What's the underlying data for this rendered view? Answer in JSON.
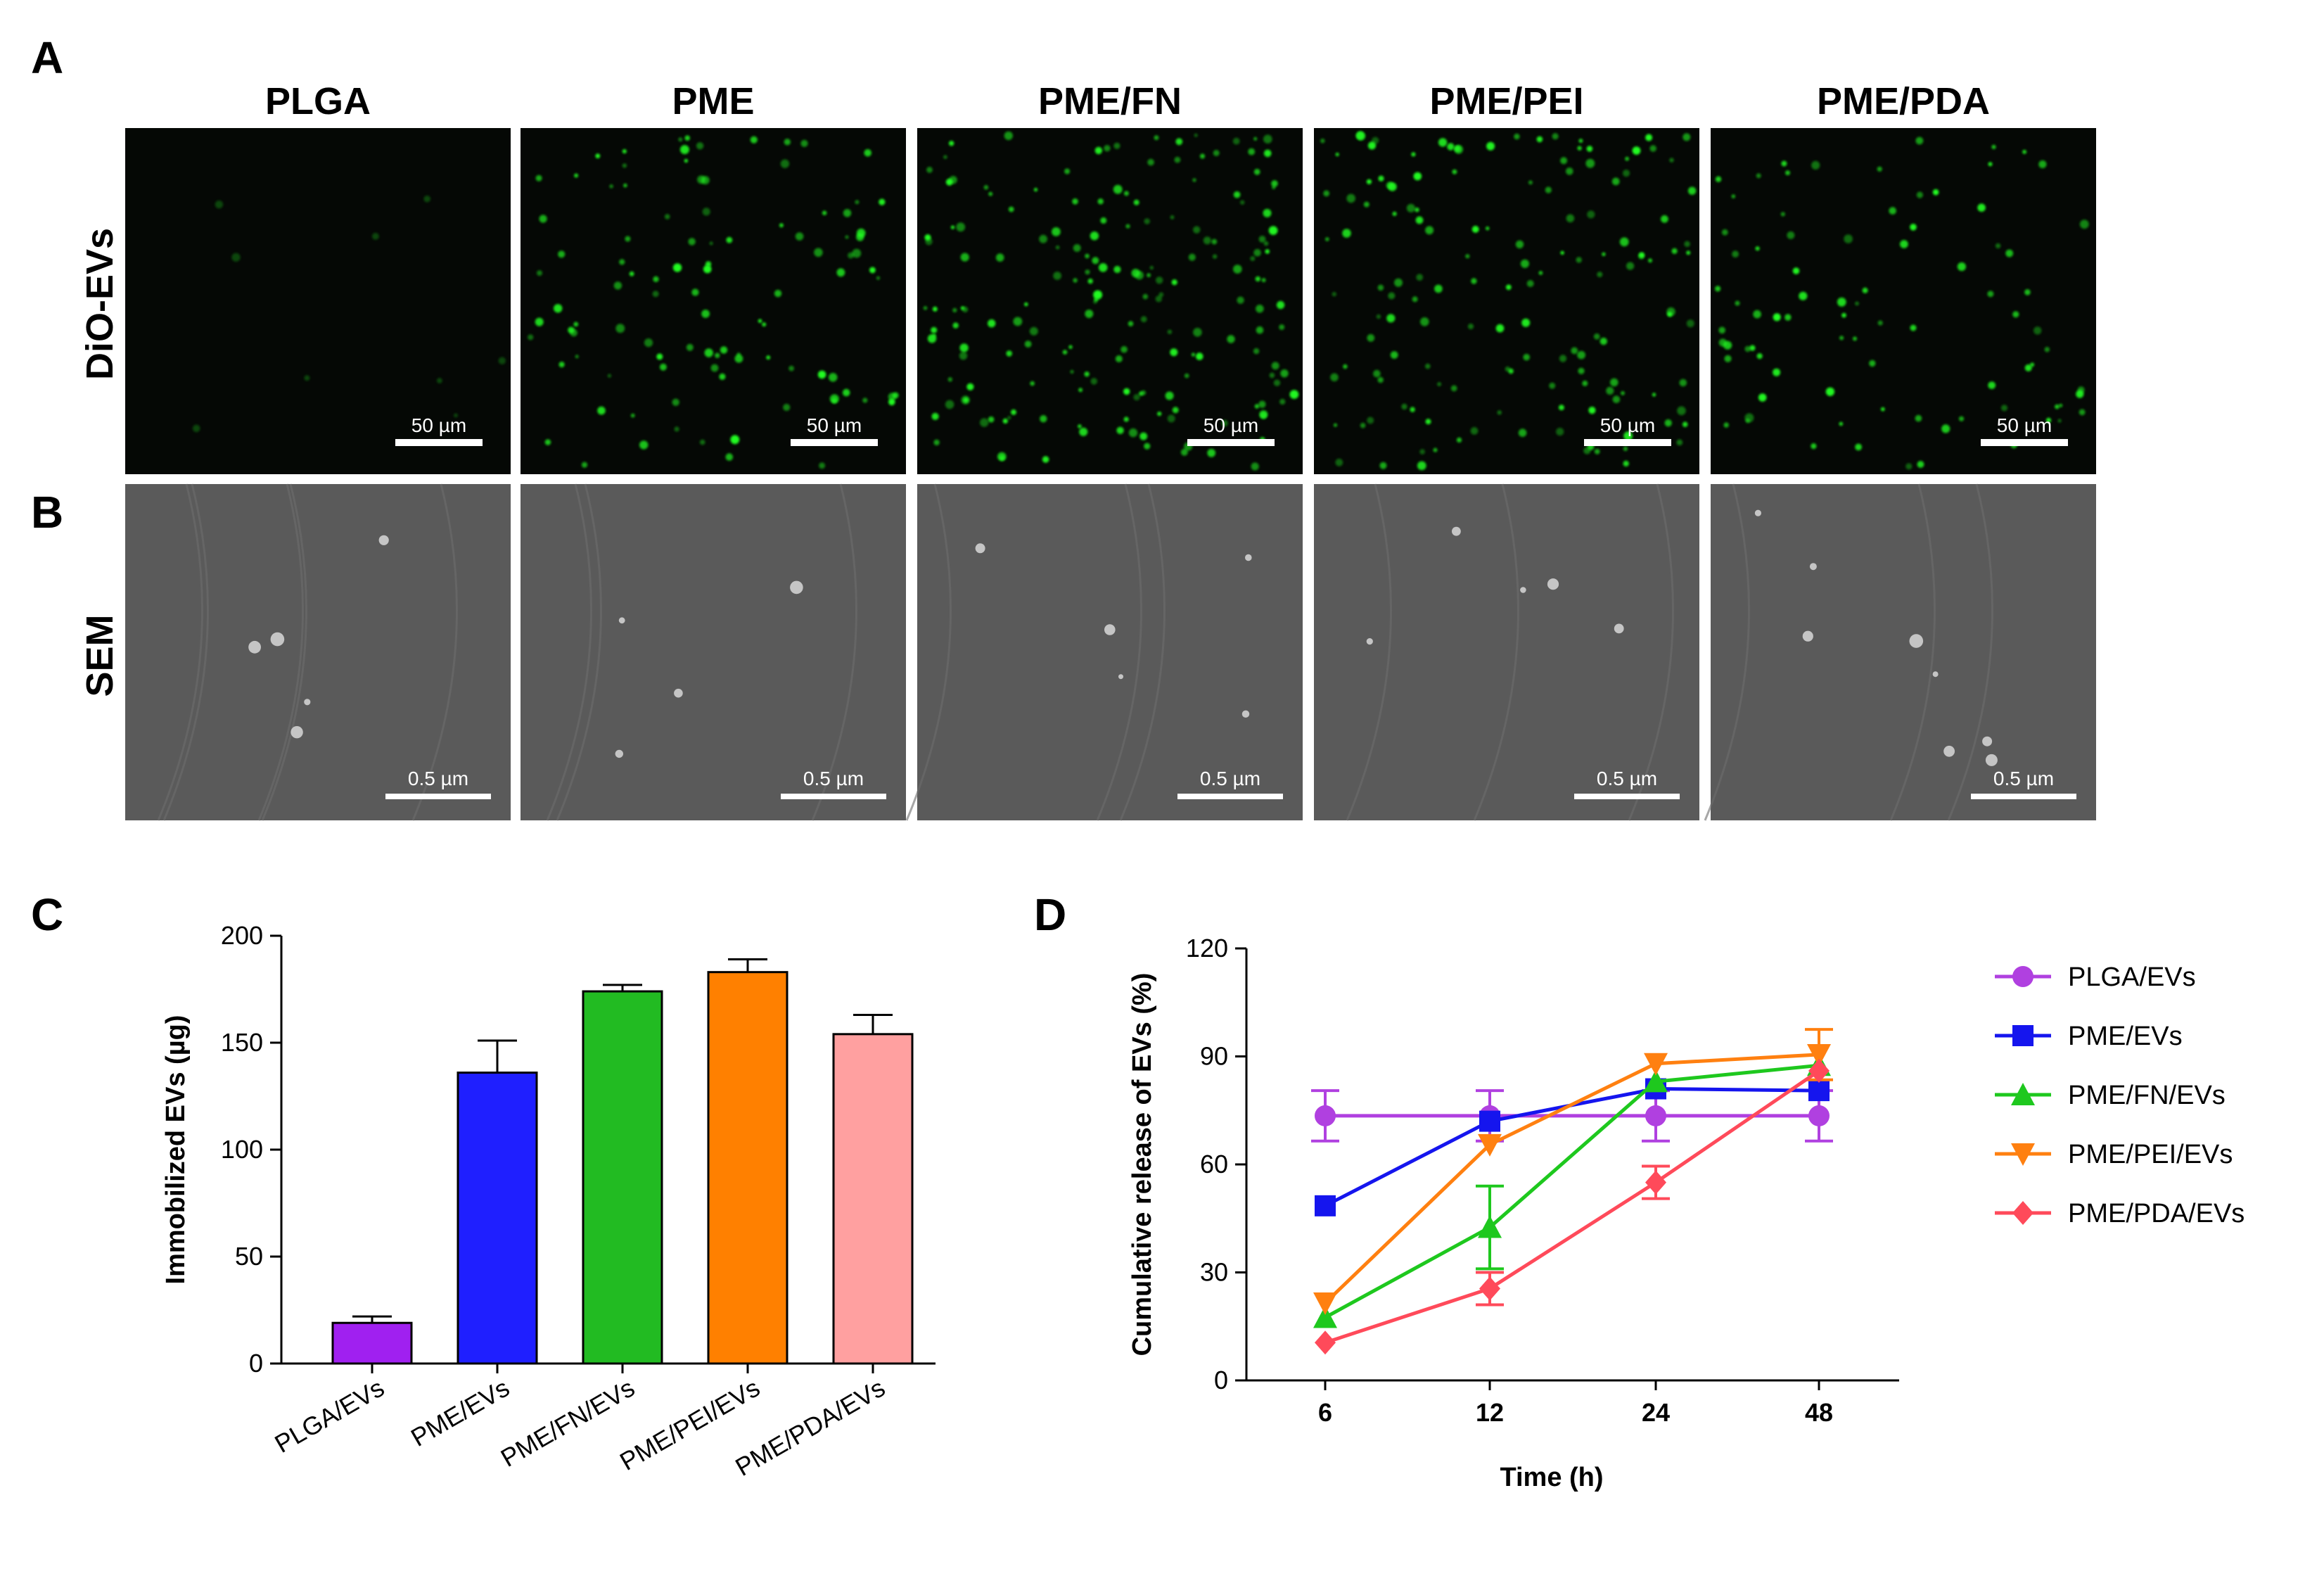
{
  "panels": {
    "a": {
      "letter": "A",
      "row_label": "DiO-EVs"
    },
    "b": {
      "letter": "B",
      "row_label": "SEM"
    },
    "c": {
      "letter": "C"
    },
    "d": {
      "letter": "D"
    }
  },
  "columns": [
    {
      "title": "PLGA",
      "fluor_scale": "50 µm",
      "sem_scale": "0.5 µm",
      "fluor_density": 0.02
    },
    {
      "title": "PME",
      "fluor_scale": "50 µm",
      "sem_scale": "0.5 µm",
      "fluor_density": 0.55
    },
    {
      "title": "PME/FN",
      "fluor_scale": "50 µm",
      "sem_scale": "0.5 µm",
      "fluor_density": 1.0
    },
    {
      "title": "PME/PEI",
      "fluor_scale": "50 µm",
      "sem_scale": "0.5 µm",
      "fluor_density": 0.8
    },
    {
      "title": "PME/PDA",
      "fluor_scale": "50 µm",
      "sem_scale": "0.5 µm",
      "fluor_density": 0.45
    }
  ],
  "colors": {
    "fluor_bg": "#050805",
    "fluor_dot": "#22ff22",
    "sem_bg": "#5a5a5a",
    "sem_particle": "#d8d8d8"
  },
  "chart_data": [
    {
      "type": "bar",
      "panel": "C",
      "categories": [
        "PLGA/EVs",
        "PME/EVs",
        "PME/FN/EVs",
        "PME/PEI/EVs",
        "PME/PDA/EVs"
      ],
      "values": [
        19,
        136,
        174,
        183,
        154
      ],
      "errors": [
        3,
        15,
        3,
        6,
        9
      ],
      "colors": [
        "#a020f0",
        "#1f1fff",
        "#22bb22",
        "#ff8000",
        "#ffa0a0"
      ],
      "ylabel": "Immobilized EVs (µg)",
      "ylim": [
        0,
        200
      ],
      "yticks": [
        "0",
        "50",
        "100",
        "150",
        "200"
      ],
      "grid": false
    },
    {
      "type": "line",
      "panel": "D",
      "x": [
        "6",
        "12",
        "24",
        "48"
      ],
      "xlabel": "Time (h)",
      "ylabel": "Cumulative release of EVs (%)",
      "ylim": [
        0,
        120
      ],
      "yticks": [
        "0",
        "30",
        "60",
        "90",
        "120"
      ],
      "legend_position": "right",
      "grid": false,
      "series": [
        {
          "name": "PLGA/EVs",
          "color": "#b040e0",
          "marker": "circle",
          "values": [
            73.5,
            73.5,
            73.5,
            73.5
          ],
          "errors": [
            7,
            7,
            7,
            7
          ]
        },
        {
          "name": "PME/EVs",
          "color": "#1515ee",
          "marker": "square",
          "values": [
            48.5,
            72,
            81,
            80.5
          ],
          "errors": [
            0,
            0,
            0,
            0
          ]
        },
        {
          "name": "PME/FN/EVs",
          "color": "#1ec81e",
          "marker": "triangle-up",
          "values": [
            17.5,
            42.5,
            83,
            87.5
          ],
          "errors": [
            0,
            11.5,
            0,
            0
          ]
        },
        {
          "name": "PME/PEI/EVs",
          "color": "#ff8010",
          "marker": "triangle-down",
          "values": [
            21.5,
            65.5,
            88,
            90.5
          ],
          "errors": [
            0,
            0,
            0,
            7
          ]
        },
        {
          "name": "PME/PDA/EVs",
          "color": "#ff4a5a",
          "marker": "diamond",
          "values": [
            10.5,
            25.5,
            55,
            86
          ],
          "errors": [
            0,
            4.5,
            4.5,
            0
          ]
        }
      ]
    }
  ]
}
